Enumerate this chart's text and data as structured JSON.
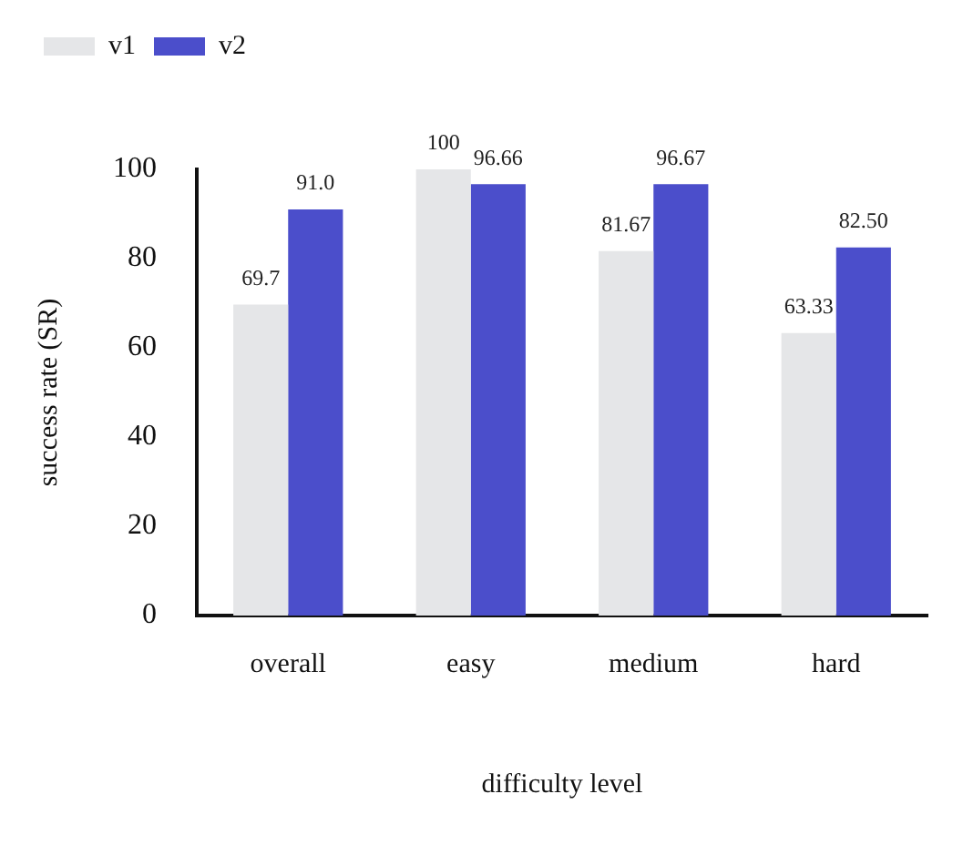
{
  "chart_data": {
    "type": "bar",
    "xlabel": "difficulty level",
    "ylabel": "success rate (SR)",
    "categories": [
      "overall",
      "easy",
      "medium",
      "hard"
    ],
    "series": [
      {
        "name": "v1",
        "color": "#e5e6e8",
        "values": [
          69.7,
          100,
          81.67,
          63.33
        ],
        "value_labels": [
          "69.7",
          "100",
          "81.67",
          "63.33"
        ]
      },
      {
        "name": "v2",
        "color": "#4b4ecb",
        "values": [
          91.0,
          96.66,
          96.67,
          82.5
        ],
        "value_labels": [
          "91.0",
          "96.66",
          "96.67",
          "82.50"
        ]
      }
    ],
    "ylim": [
      0,
      100
    ],
    "yticks": [
      0,
      20,
      40,
      60,
      80,
      100
    ],
    "grid": false,
    "legend": "top left"
  }
}
